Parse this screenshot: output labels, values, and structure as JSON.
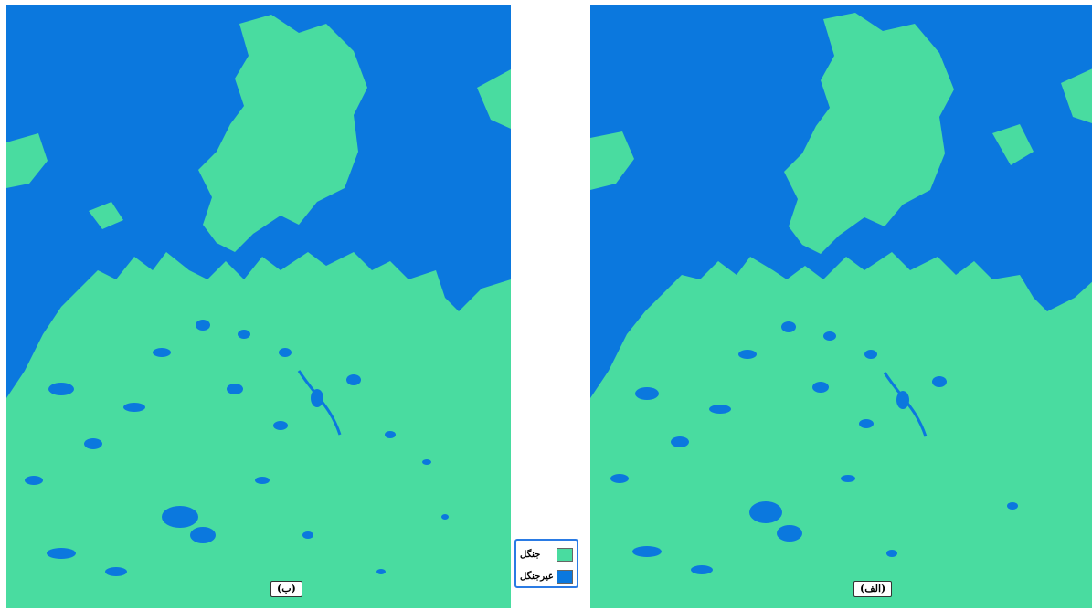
{
  "colors": {
    "forest": "#49dca0",
    "non_forest": "#0b78de",
    "legend_border": "#2a7be4"
  },
  "panels": {
    "left": {
      "label": "(ب)"
    },
    "right": {
      "label": "(الف)"
    }
  },
  "legend": {
    "items": [
      {
        "label": "جنگل",
        "color": "#49dca0"
      },
      {
        "label": "غیرجنگل",
        "color": "#0b78de"
      }
    ]
  }
}
